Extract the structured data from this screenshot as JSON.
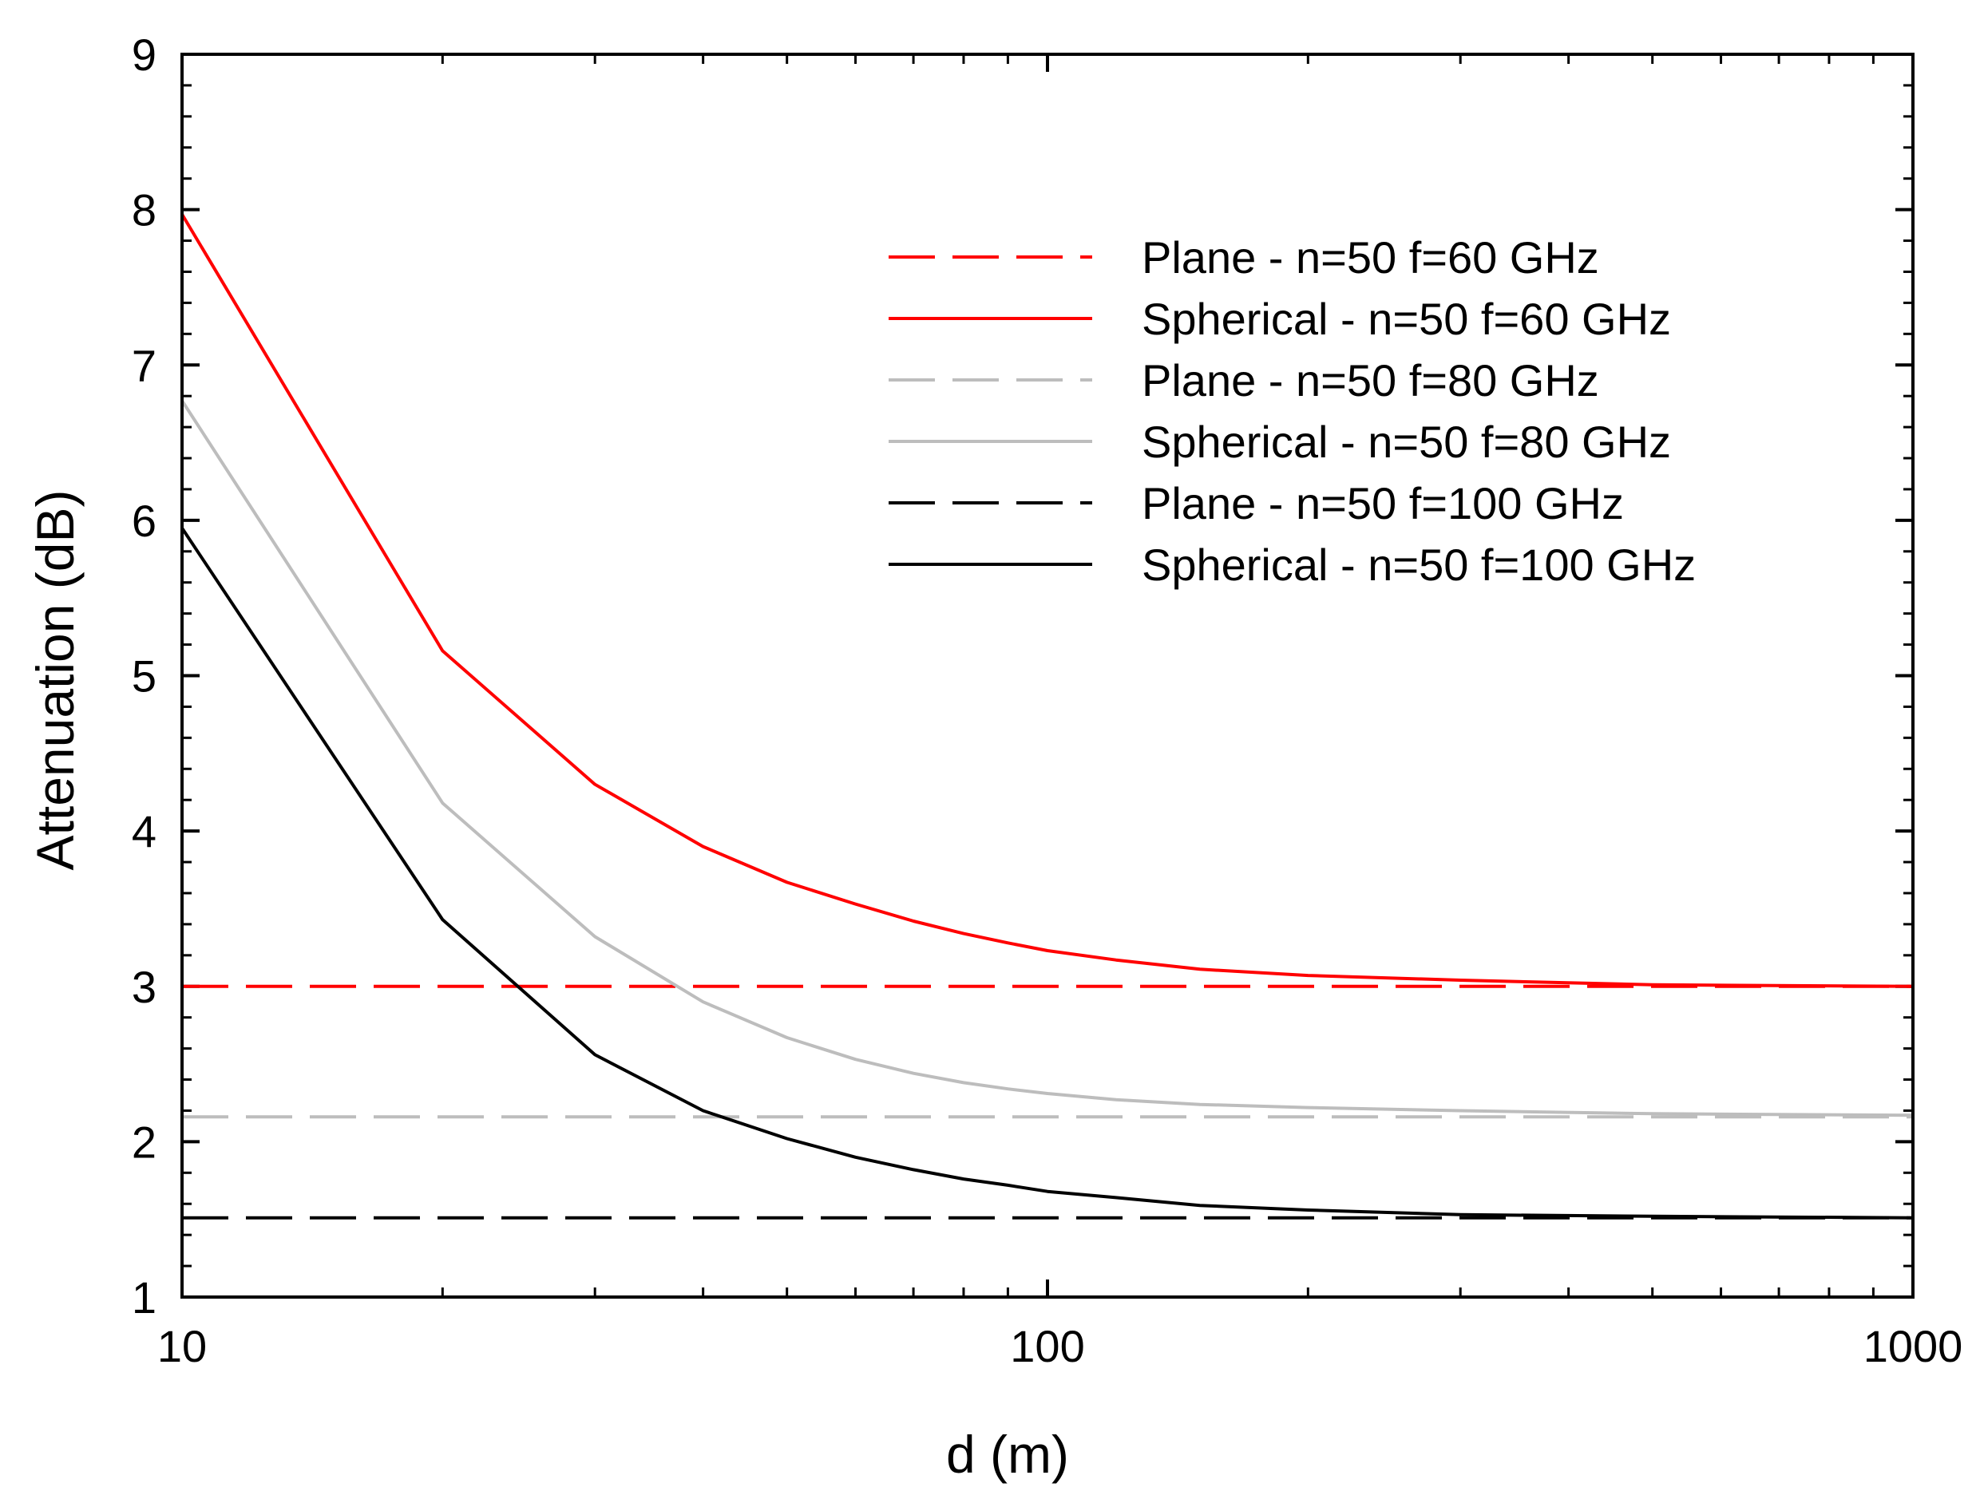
{
  "chart_data": {
    "type": "line",
    "title": "",
    "xlabel": "d (m)",
    "ylabel": "Attenuation (dB)",
    "xscale": "log",
    "xlim": [
      10,
      1000
    ],
    "ylim": [
      1,
      9
    ],
    "xticks": [
      10,
      100,
      1000
    ],
    "xtick_labels": [
      "10",
      "100",
      "1000"
    ],
    "yticks": [
      1,
      2,
      3,
      4,
      5,
      6,
      7,
      8,
      9
    ],
    "ytick_labels": [
      "1",
      "2",
      "3",
      "4",
      "5",
      "6",
      "7",
      "8",
      "9"
    ],
    "grid": false,
    "legend_position": "top-right",
    "series": [
      {
        "name": "Plane - n=50 f=60 GHz",
        "color": "#ff0000",
        "dash": "dashed",
        "x": [
          10,
          1000
        ],
        "y": [
          3.0,
          3.0
        ]
      },
      {
        "name": "Spherical - n=50 f=60 GHz",
        "color": "#ff0000",
        "dash": "solid",
        "x": [
          10,
          20,
          30,
          40,
          50,
          60,
          70,
          80,
          90,
          100,
          120,
          150,
          200,
          300,
          500,
          1000
        ],
        "y": [
          7.97,
          5.16,
          4.3,
          3.9,
          3.67,
          3.53,
          3.42,
          3.34,
          3.28,
          3.23,
          3.17,
          3.11,
          3.07,
          3.04,
          3.01,
          3.0
        ]
      },
      {
        "name": "Plane - n=50 f=80 GHz",
        "color": "#bdbdbd",
        "dash": "dashed",
        "x": [
          10,
          1000
        ],
        "y": [
          2.16,
          2.16
        ]
      },
      {
        "name": "Spherical - n=50 f=80 GHz",
        "color": "#bdbdbd",
        "dash": "solid",
        "x": [
          10,
          20,
          30,
          40,
          50,
          60,
          70,
          80,
          90,
          100,
          120,
          150,
          200,
          300,
          500,
          1000
        ],
        "y": [
          6.77,
          4.18,
          3.32,
          2.9,
          2.67,
          2.53,
          2.44,
          2.38,
          2.34,
          2.31,
          2.27,
          2.24,
          2.22,
          2.2,
          2.18,
          2.17
        ]
      },
      {
        "name": "Plane - n=50 f=100 GHz",
        "color": "#000000",
        "dash": "dashed",
        "x": [
          10,
          1000
        ],
        "y": [
          1.51,
          1.51
        ]
      },
      {
        "name": "Spherical - n=50 f=100 GHz",
        "color": "#000000",
        "dash": "solid",
        "x": [
          10,
          20,
          30,
          40,
          50,
          60,
          70,
          80,
          90,
          100,
          120,
          150,
          200,
          300,
          500,
          1000
        ],
        "y": [
          5.95,
          3.43,
          2.56,
          2.2,
          2.02,
          1.9,
          1.82,
          1.76,
          1.72,
          1.68,
          1.64,
          1.59,
          1.56,
          1.53,
          1.52,
          1.51
        ]
      }
    ]
  }
}
